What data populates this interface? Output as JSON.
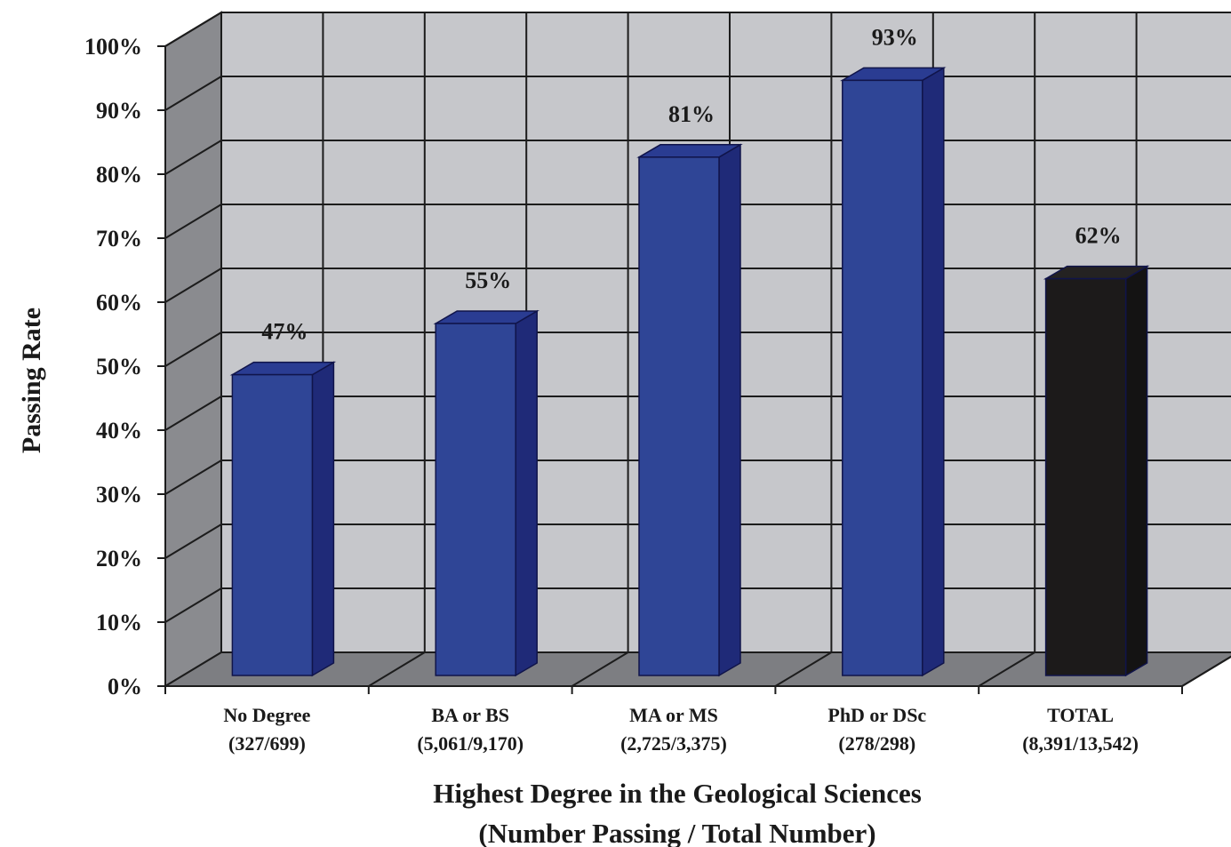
{
  "chart_data": {
    "type": "bar",
    "xlabel": "Highest Degree in the Geological Sciences",
    "xlabel_line2": "(Number Passing / Total Number)",
    "ylabel": "Passing Rate",
    "ylim": [
      0,
      100
    ],
    "yticks": [
      "0%",
      "10%",
      "20%",
      "30%",
      "40%",
      "50%",
      "60%",
      "70%",
      "80%",
      "90%",
      "100%"
    ],
    "grid": true,
    "categories": [
      {
        "name": "No Degree",
        "counts": "(327/699)",
        "value": 47,
        "label": "47%"
      },
      {
        "name": "BA or BS",
        "counts": "(5,061/9,170)",
        "value": 55,
        "label": "55%"
      },
      {
        "name": "MA or MS",
        "counts": "(2,725/3,375)",
        "value": 81,
        "label": "81%"
      },
      {
        "name": "PhD or DSc",
        "counts": "(278/298)",
        "value": 93,
        "label": "93%"
      },
      {
        "name": "TOTAL",
        "counts": "(8,391/13,542)",
        "value": 62,
        "label": "62%"
      }
    ],
    "colors": {
      "bar": "#2f4596",
      "bar_side": "#1f2a78",
      "bar_top": "#2a3c92",
      "total_bar": "#1c1a1a",
      "back_wall": "#c6c7cb",
      "side_wall": "#8a8b8f",
      "floor": "#7d7e82",
      "grid": "#1c1c1c"
    }
  }
}
